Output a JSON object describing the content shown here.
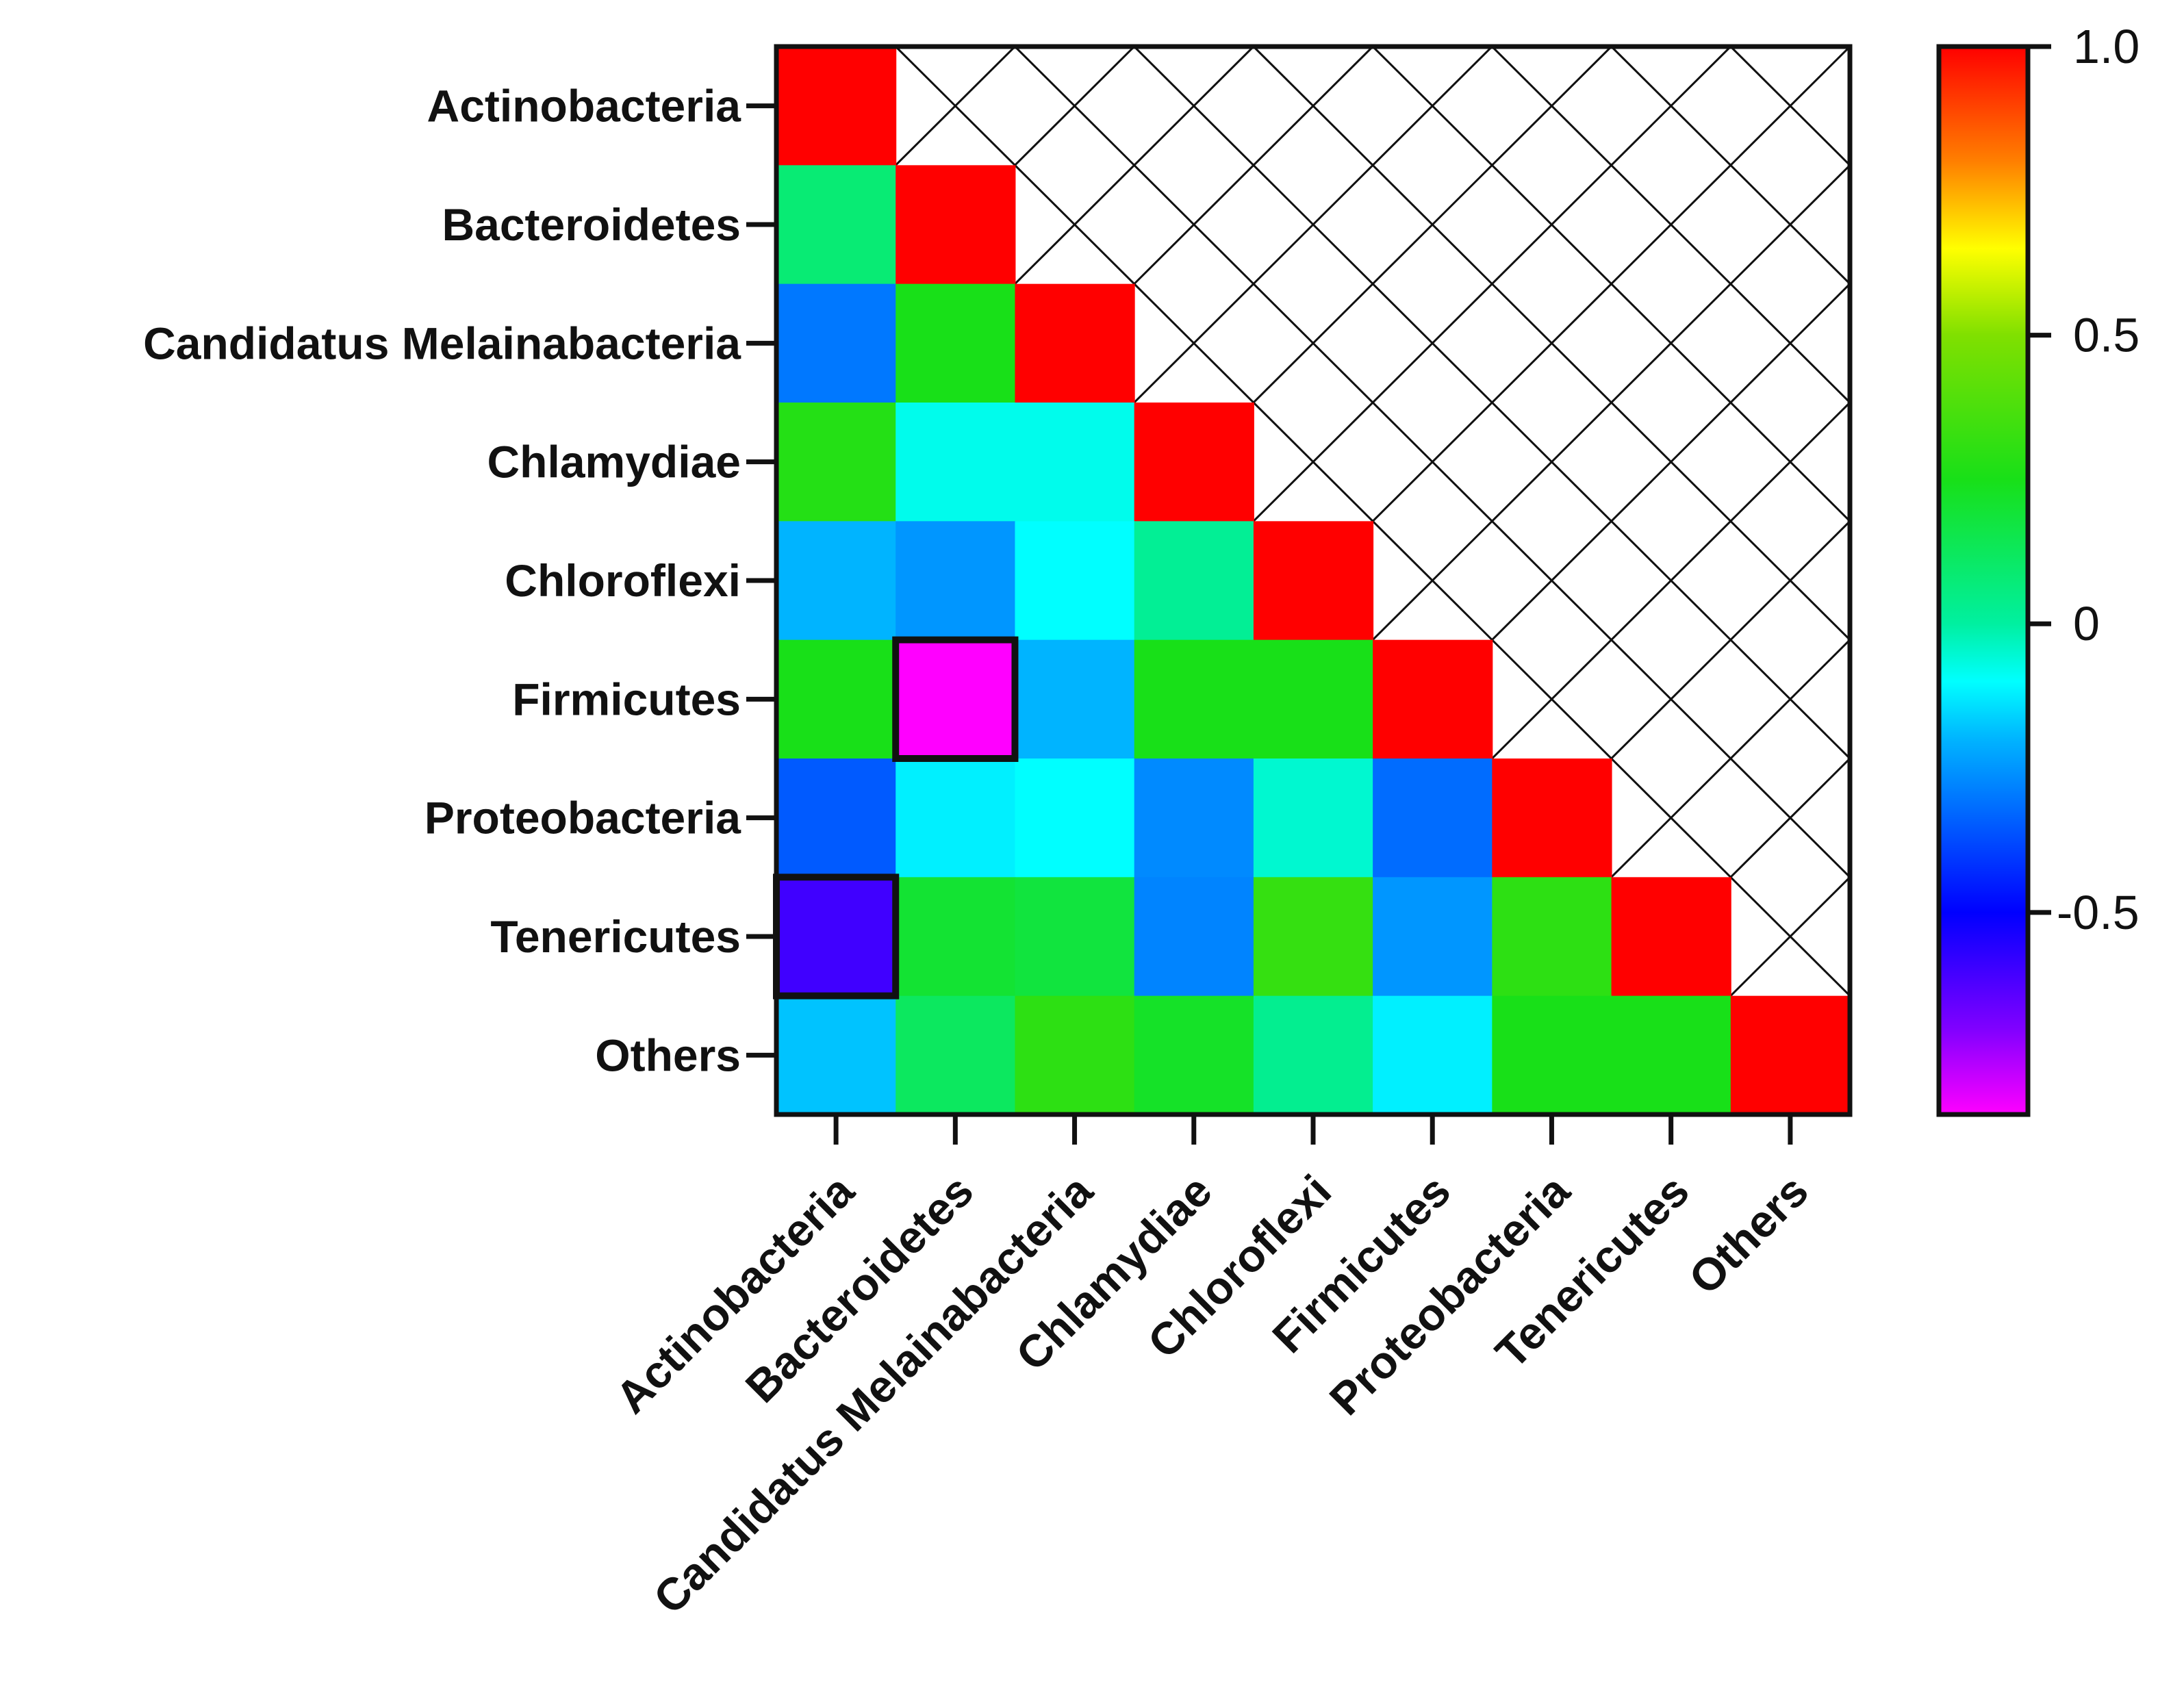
{
  "chart_data": {
    "type": "heatmap",
    "title": "",
    "xlabel": "",
    "ylabel": "",
    "rows": [
      "Actinobacteria",
      "Bacteroidetes",
      "Candidatus Melainabacteria",
      "Chlamydiae",
      "Chloroflexi",
      "Firmicutes",
      "Proteobacteria",
      "Tenericutes",
      "Others"
    ],
    "columns": [
      "Actinobacteria",
      "Bacteroidetes",
      "Candidatus Melainabacteria",
      "Chlamydiae",
      "Chloroflexi",
      "Firmicutes",
      "Proteobacteria",
      "Tenericutes",
      "Others"
    ],
    "values": [
      [
        1.0,
        null,
        null,
        null,
        null,
        null,
        null,
        null,
        null
      ],
      [
        0.08,
        1.0,
        null,
        null,
        null,
        null,
        null,
        null,
        null
      ],
      [
        -0.3,
        0.25,
        1.0,
        null,
        null,
        null,
        null,
        null,
        null
      ],
      [
        0.28,
        -0.08,
        -0.08,
        1.0,
        null,
        null,
        null,
        null,
        null
      ],
      [
        -0.2,
        -0.25,
        -0.1,
        0.02,
        1.0,
        null,
        null,
        null,
        null
      ],
      [
        0.25,
        -0.85,
        -0.2,
        0.25,
        0.25,
        1.0,
        null,
        null,
        null
      ],
      [
        -0.35,
        -0.12,
        -0.1,
        -0.27,
        -0.05,
        -0.32,
        1.0,
        null,
        null
      ],
      [
        -0.6,
        0.2,
        0.18,
        -0.28,
        0.32,
        -0.25,
        0.3,
        1.0,
        null
      ],
      [
        -0.18,
        0.12,
        0.3,
        0.22,
        0.03,
        -0.12,
        0.25,
        0.25,
        1.0
      ]
    ],
    "highlighted_cells": [
      {
        "row": "Firmicutes",
        "column": "Bacteroidetes"
      },
      {
        "row": "Tenericutes",
        "column": "Actinobacteria"
      }
    ],
    "masked_region": "upper triangle (crosshatched)",
    "colorbar": {
      "range": [
        -0.85,
        1.0
      ],
      "ticks": [
        1.0,
        0.5,
        0,
        -0.5
      ],
      "tick_labels": [
        "1.0",
        "0.5",
        "0",
        "-0.5"
      ],
      "colors": {
        "low": "#ff00ff",
        "minus_0_7": "#7f00ff",
        "minus_0_5": "#0000ff",
        "minus_0_2": "#00b4ff",
        "minus_0_1": "#00ffff",
        "zero": "#00f0a0",
        "plus_0_25": "#18e018",
        "plus_0_5": "#80e000",
        "plus_0_65": "#ffff00",
        "plus_0_8": "#ff8000",
        "high": "#ff0000"
      }
    }
  }
}
